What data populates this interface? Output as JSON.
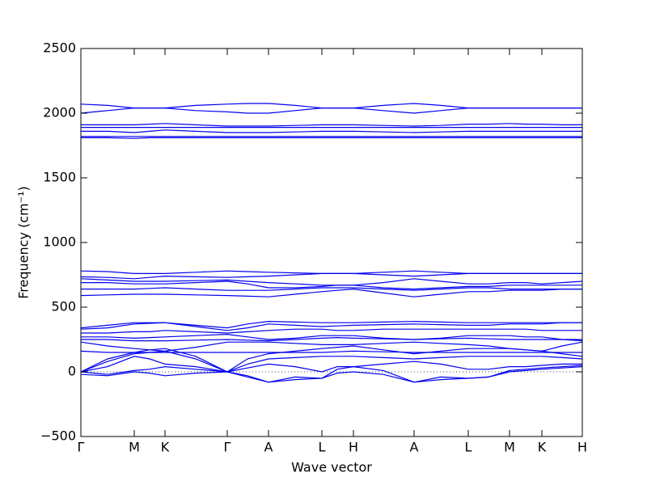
{
  "chart_data": {
    "type": "line",
    "xlabel": "Wave vector",
    "ylabel": "Frequency (cm⁻¹)",
    "xlim": [
      0,
      620
    ],
    "xticks": [
      {
        "value": 0,
        "label": "Γ"
      },
      {
        "value": 66,
        "label": "M"
      },
      {
        "value": 104,
        "label": "K"
      },
      {
        "value": 181,
        "label": "Γ"
      },
      {
        "value": 232,
        "label": "A"
      },
      {
        "value": 298,
        "label": "L"
      },
      {
        "value": 337,
        "label": "H"
      },
      {
        "value": 412,
        "label": "A"
      },
      {
        "value": 479,
        "label": "L"
      },
      {
        "value": 530,
        "label": "M"
      },
      {
        "value": 570,
        "label": "K"
      },
      {
        "value": 620,
        "label": "H"
      }
    ],
    "ylim": [
      -500,
      2500
    ],
    "yticks": [
      {
        "value": -500,
        "label": "−500"
      },
      0,
      500,
      1000,
      1500,
      2000,
      2500
    ],
    "hline": 0,
    "color": "#0000ee",
    "x": [
      0,
      33,
      66,
      85,
      104,
      142,
      181,
      206,
      232,
      265,
      298,
      317,
      337,
      374,
      412,
      445,
      479,
      504,
      530,
      550,
      570,
      595,
      620
    ],
    "series": [
      {
        "values": [
          2070,
          2060,
          2040,
          2040,
          2040,
          2060,
          2070,
          2075,
          2075,
          2060,
          2040,
          2040,
          2040,
          2060,
          2075,
          2060,
          2040,
          2040,
          2040,
          2040,
          2040,
          2040,
          2040
        ]
      },
      {
        "values": [
          2000,
          2020,
          2040,
          2040,
          2040,
          2020,
          2010,
          2000,
          2000,
          2020,
          2040,
          2040,
          2040,
          2020,
          2000,
          2020,
          2040,
          2040,
          2040,
          2040,
          2040,
          2040,
          2040
        ]
      },
      {
        "values": [
          1910,
          1910,
          1910,
          1915,
          1920,
          1910,
          1900,
          1900,
          1900,
          1905,
          1910,
          1910,
          1910,
          1905,
          1900,
          1905,
          1915,
          1915,
          1920,
          1915,
          1915,
          1910,
          1910
        ]
      },
      {
        "values": [
          1890,
          1890,
          1890,
          1890,
          1890,
          1890,
          1890,
          1890,
          1890,
          1890,
          1890,
          1890,
          1890,
          1890,
          1890,
          1890,
          1890,
          1890,
          1890,
          1890,
          1890,
          1890,
          1890
        ]
      },
      {
        "values": [
          1860,
          1860,
          1850,
          1860,
          1870,
          1860,
          1850,
          1850,
          1850,
          1855,
          1860,
          1860,
          1860,
          1855,
          1850,
          1855,
          1860,
          1860,
          1860,
          1860,
          1860,
          1860,
          1860
        ]
      },
      {
        "values": [
          1820,
          1820,
          1820,
          1820,
          1820,
          1820,
          1820,
          1820,
          1820,
          1820,
          1820,
          1820,
          1820,
          1820,
          1820,
          1820,
          1820,
          1820,
          1820,
          1820,
          1820,
          1820,
          1820
        ]
      },
      {
        "values": [
          1810,
          1810,
          1805,
          1810,
          1810,
          1810,
          1810,
          1810,
          1810,
          1810,
          1810,
          1810,
          1810,
          1810,
          1810,
          1810,
          1810,
          1810,
          1810,
          1810,
          1810,
          1810,
          1810
        ]
      },
      {
        "values": [
          780,
          775,
          760,
          760,
          760,
          770,
          780,
          775,
          770,
          765,
          760,
          760,
          760,
          770,
          780,
          770,
          760,
          760,
          760,
          760,
          760,
          760,
          760
        ]
      },
      {
        "values": [
          735,
          730,
          720,
          730,
          740,
          735,
          730,
          735,
          740,
          750,
          760,
          760,
          760,
          750,
          740,
          750,
          760,
          760,
          760,
          760,
          760,
          760,
          760
        ]
      },
      {
        "values": [
          720,
          710,
          700,
          700,
          700,
          705,
          710,
          700,
          690,
          680,
          670,
          670,
          670,
          690,
          720,
          700,
          680,
          680,
          690,
          690,
          680,
          690,
          700
        ]
      },
      {
        "values": [
          690,
          690,
          680,
          680,
          680,
          690,
          700,
          680,
          650,
          650,
          660,
          670,
          670,
          650,
          640,
          650,
          660,
          660,
          670,
          670,
          670,
          670,
          670
        ]
      },
      {
        "values": [
          640,
          640,
          640,
          645,
          650,
          640,
          630,
          630,
          630,
          640,
          650,
          650,
          650,
          640,
          630,
          640,
          650,
          650,
          640,
          640,
          640,
          640,
          640
        ]
      },
      {
        "values": [
          590,
          595,
          600,
          600,
          600,
          595,
          590,
          585,
          580,
          600,
          620,
          630,
          640,
          610,
          580,
          600,
          620,
          620,
          630,
          630,
          630,
          640,
          640
        ]
      },
      {
        "values": [
          340,
          360,
          380,
          380,
          380,
          360,
          340,
          370,
          390,
          385,
          380,
          380,
          380,
          385,
          390,
          385,
          380,
          380,
          380,
          380,
          380,
          380,
          380
        ]
      },
      {
        "values": [
          330,
          340,
          370,
          375,
          380,
          350,
          320,
          340,
          370,
          360,
          350,
          355,
          360,
          365,
          370,
          365,
          360,
          360,
          370,
          370,
          370,
          380,
          380
        ]
      },
      {
        "values": [
          300,
          300,
          310,
          310,
          320,
          310,
          300,
          310,
          320,
          330,
          330,
          320,
          320,
          330,
          330,
          330,
          330,
          330,
          330,
          330,
          320,
          320,
          320
        ]
      },
      {
        "values": [
          270,
          270,
          260,
          265,
          270,
          280,
          290,
          270,
          250,
          260,
          280,
          280,
          280,
          260,
          250,
          260,
          280,
          280,
          280,
          270,
          270,
          250,
          240
        ]
      },
      {
        "values": [
          250,
          250,
          240,
          240,
          240,
          245,
          250,
          245,
          240,
          250,
          260,
          265,
          260,
          255,
          250,
          255,
          260,
          255,
          250,
          250,
          250,
          250,
          250
        ]
      },
      {
        "values": [
          230,
          200,
          180,
          170,
          160,
          190,
          230,
          230,
          230,
          220,
          210,
          210,
          210,
          220,
          230,
          220,
          210,
          200,
          180,
          170,
          160,
          200,
          230
        ]
      },
      {
        "values": [
          160,
          150,
          150,
          150,
          150,
          150,
          150,
          150,
          150,
          150,
          150,
          155,
          160,
          155,
          150,
          150,
          150,
          150,
          150,
          150,
          150,
          150,
          150
        ]
      },
      {
        "values": [
          0,
          100,
          150,
          170,
          180,
          120,
          0,
          100,
          140,
          160,
          180,
          190,
          200,
          170,
          140,
          160,
          180,
          180,
          180,
          170,
          160,
          140,
          120
        ]
      },
      {
        "values": [
          0,
          80,
          140,
          150,
          160,
          100,
          0,
          60,
          100,
          110,
          120,
          120,
          120,
          110,
          100,
          110,
          120,
          120,
          120,
          120,
          120,
          110,
          100
        ]
      },
      {
        "values": [
          0,
          40,
          120,
          100,
          60,
          40,
          0,
          30,
          60,
          40,
          0,
          40,
          40,
          60,
          80,
          60,
          20,
          20,
          40,
          40,
          50,
          60,
          60
        ]
      },
      {
        "values": [
          0,
          -20,
          10,
          20,
          40,
          20,
          0,
          -40,
          -80,
          -40,
          -50,
          20,
          40,
          10,
          -80,
          -40,
          -50,
          -40,
          10,
          20,
          30,
          40,
          50
        ]
      },
      {
        "values": [
          -20,
          -30,
          0,
          -10,
          -30,
          -10,
          0,
          -30,
          -80,
          -60,
          -50,
          -10,
          0,
          -20,
          -80,
          -60,
          -50,
          -40,
          0,
          10,
          20,
          30,
          40
        ]
      }
    ]
  }
}
